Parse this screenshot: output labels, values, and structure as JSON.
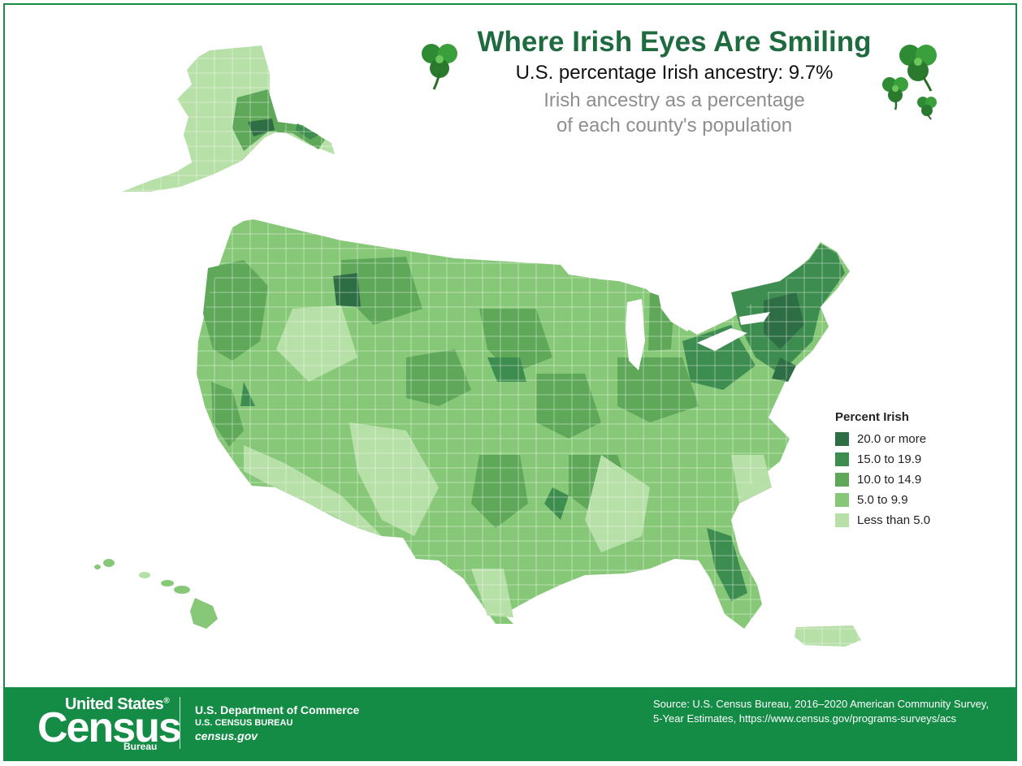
{
  "title": "Where Irish Eyes Are Smiling",
  "subtitle": "U.S. percentage Irish ancestry: 9.7%",
  "description_line1": "Irish ancestry as a percentage",
  "description_line2": "of each county's population",
  "legend": {
    "title": "Percent Irish",
    "items": [
      {
        "label": "20.0 or more",
        "color": "#2e6e44"
      },
      {
        "label": "15.0 to 19.9",
        "color": "#3d8c50"
      },
      {
        "label": "10.0 to 14.9",
        "color": "#5fa85a"
      },
      {
        "label": "5.0 to 9.9",
        "color": "#86c878"
      },
      {
        "label": "Less than 5.0",
        "color": "#b6e0a8"
      }
    ]
  },
  "footer": {
    "logo_line1": "United States",
    "logo_reg": "®",
    "logo_census": "Census",
    "logo_bureau": "Bureau",
    "dept_line1": "U.S. Department of Commerce",
    "dept_line2": "U.S. CENSUS BUREAU",
    "dept_line3": "census.gov",
    "source": "Source: U.S. Census Bureau, 2016–2020 American Community Survey, 5-Year Estimates, https://www.census.gov/programs-surveys/acs"
  },
  "colors": {
    "brand_green": "#148c46",
    "title_green": "#1f6b40"
  },
  "icons": [
    "shamrock-icon"
  ]
}
